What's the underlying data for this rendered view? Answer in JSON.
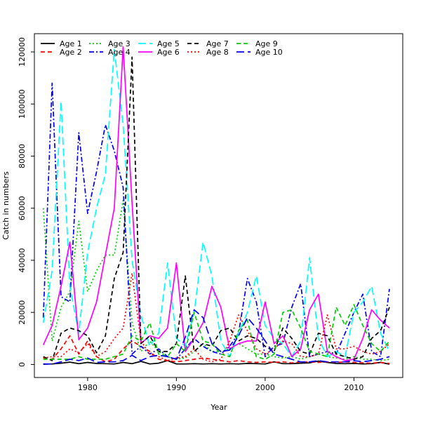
{
  "chart_data": {
    "type": "line",
    "xlabel": "Year",
    "ylabel": "Catch in numbers",
    "xlim": [
      1974,
      2015.5
    ],
    "ylim": [
      -5000,
      127000
    ],
    "xticks": [
      1980,
      1990,
      2000,
      2010
    ],
    "yticks": [
      0,
      20000,
      40000,
      60000,
      80000,
      100000,
      120000
    ],
    "grid": false,
    "legend_position": "top-left",
    "x": [
      1975,
      1976,
      1977,
      1978,
      1979,
      1980,
      1981,
      1982,
      1983,
      1984,
      1985,
      1986,
      1987,
      1988,
      1989,
      1990,
      1991,
      1992,
      1993,
      1994,
      1995,
      1996,
      1997,
      1998,
      1999,
      2000,
      2001,
      2002,
      2003,
      2004,
      2005,
      2006,
      2007,
      2008,
      2009,
      2010,
      2011,
      2012,
      2013,
      2014
    ],
    "series": [
      {
        "name": "Age 1",
        "color": "#000000",
        "dash": "solid",
        "values": [
          100,
          200,
          500,
          900,
          300,
          800,
          400,
          300,
          200,
          800,
          300,
          1200,
          200,
          500,
          1500,
          200,
          200,
          300,
          200,
          300,
          200,
          300,
          200,
          400,
          300,
          200,
          1000,
          300,
          300,
          500,
          600,
          1300,
          800,
          400,
          300,
          400,
          200,
          300,
          800,
          100
        ]
      },
      {
        "name": "Age 2",
        "color": "#ff0000",
        "dash": "dashed",
        "values": [
          2500,
          2000,
          6000,
          11000,
          4000,
          9000,
          3000,
          1000,
          2000,
          6000,
          9000,
          7000,
          5000,
          2000,
          1500,
          1000,
          1500,
          2000,
          2500,
          2000,
          1500,
          1000,
          1500,
          1000,
          800,
          1000,
          800,
          1000,
          600,
          1000,
          1000,
          800,
          1000,
          800,
          1000,
          800,
          600,
          500,
          800,
          400
        ]
      },
      {
        "name": "Age 3",
        "color": "#00cd00",
        "dash": "dotted",
        "values": [
          60000,
          9000,
          22000,
          28000,
          55000,
          28000,
          36000,
          42000,
          42000,
          63000,
          16000,
          5000,
          9000,
          5000,
          3000,
          2000,
          2500,
          5000,
          8000,
          5000,
          5000,
          6000,
          8000,
          6000,
          4000,
          4000,
          3000,
          2500,
          3000,
          2000,
          3000,
          4000,
          3000,
          2500,
          2000,
          3000,
          2000,
          2000,
          1500,
          2000
        ]
      },
      {
        "name": "Age 4",
        "color": "#0000ff",
        "dash": "dashdot",
        "values": [
          18000,
          108000,
          26000,
          24000,
          89000,
          58000,
          74000,
          92000,
          82000,
          68000,
          4000,
          7000,
          4000,
          6000,
          3000,
          2000,
          6000,
          10000,
          7000,
          5000,
          4000,
          7000,
          12000,
          33000,
          24000,
          3000,
          7000,
          8000,
          22000,
          31000,
          3000,
          4000,
          5000,
          4000,
          12000,
          20000,
          27000,
          5000,
          3000,
          29000
        ]
      },
      {
        "name": "Age 5",
        "color": "#00ffff",
        "dash": "longdash",
        "values": [
          16000,
          36000,
          101000,
          30000,
          12000,
          43000,
          60000,
          73000,
          121000,
          92000,
          40000,
          19000,
          7000,
          12000,
          39000,
          10000,
          7000,
          20000,
          47000,
          34000,
          9000,
          3000,
          12000,
          20000,
          34000,
          15000,
          10000,
          8000,
          3000,
          9000,
          41000,
          10000,
          3000,
          5000,
          3000,
          20000,
          24000,
          30000,
          12000,
          5000
        ]
      },
      {
        "name": "Age 6",
        "color": "#ff00ff",
        "dash": "solid",
        "values": [
          7500,
          15000,
          30000,
          47000,
          9500,
          14000,
          24000,
          42000,
          60000,
          122000,
          62000,
          8000,
          11000,
          10000,
          14000,
          39000,
          5000,
          10000,
          16000,
          30000,
          22000,
          6000,
          8000,
          9000,
          9000,
          24000,
          8000,
          11000,
          3000,
          6000,
          21000,
          27000,
          5000,
          3000,
          1500,
          2000,
          10000,
          21000,
          17000,
          14000
        ]
      },
      {
        "name": "Age 7",
        "color": "#000000",
        "dash": "dashed",
        "values": [
          3000,
          1500,
          12000,
          14000,
          13000,
          11000,
          4500,
          11000,
          33000,
          43000,
          118000,
          8000,
          11000,
          5000,
          5000,
          8000,
          34000,
          5000,
          8000,
          7000,
          13000,
          14000,
          9000,
          11000,
          10000,
          7000,
          5000,
          14000,
          10000,
          5000,
          4000,
          12000,
          11000,
          4000,
          3000,
          2000,
          3000,
          10000,
          13000,
          22000
        ]
      },
      {
        "name": "Age 8",
        "color": "#ff0000",
        "dash": "dotted",
        "values": [
          2500,
          3000,
          3000,
          6000,
          4500,
          8000,
          3000,
          5000,
          10000,
          14000,
          35000,
          9000,
          4000,
          3000,
          1500,
          2500,
          3000,
          6000,
          2000,
          1000,
          2000,
          9000,
          19000,
          13000,
          6000,
          4000,
          6000,
          9000,
          8000,
          3000,
          3000,
          4000,
          19000,
          6000,
          6000,
          7000,
          5000,
          4000,
          5000,
          8000
        ]
      },
      {
        "name": "Age 9",
        "color": "#00cd00",
        "dash": "dashed",
        "values": [
          2000,
          2000,
          2000,
          2000,
          3000,
          2000,
          2000,
          2000,
          3000,
          4000,
          11000,
          9000,
          16000,
          4000,
          3000,
          8000,
          5000,
          20000,
          9000,
          8000,
          4000,
          3000,
          13000,
          17000,
          3000,
          2000,
          4000,
          20000,
          21000,
          14000,
          5000,
          4000,
          3000,
          22000,
          15000,
          23000,
          15000,
          8000,
          5000,
          9000
        ]
      },
      {
        "name": "Age 10",
        "color": "#0000ff",
        "dash": "longdash",
        "values": [
          200,
          200,
          1000,
          2000,
          1500,
          2500,
          800,
          1000,
          1000,
          1500,
          3500,
          1500,
          3000,
          3500,
          3000,
          2000,
          10500,
          21000,
          18000,
          8000,
          5000,
          5500,
          11000,
          18000,
          14000,
          9000,
          4000,
          3000,
          2000,
          1000,
          1000,
          1500,
          1000,
          1000,
          1000,
          1500,
          1000,
          1500,
          2000,
          3000
        ]
      }
    ]
  }
}
